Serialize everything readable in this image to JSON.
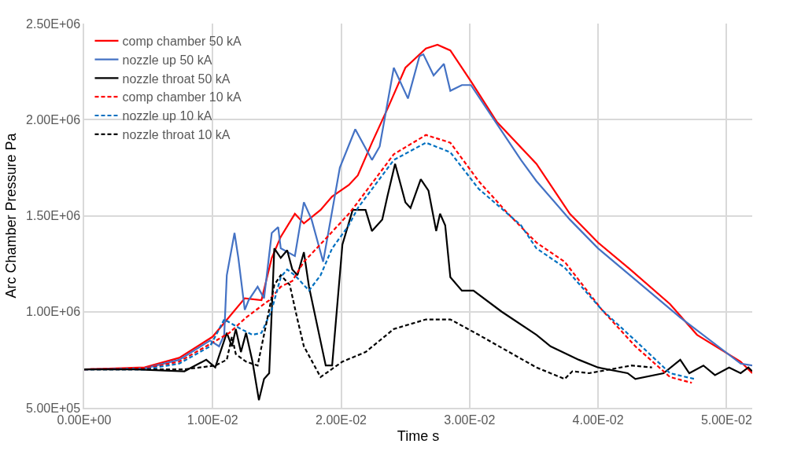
{
  "chart_data": {
    "type": "line",
    "xlabel": "Time s",
    "ylabel": "Arc Chamber Pressure Pa",
    "xlim": [
      0,
      0.052
    ],
    "ylim": [
      500000,
      2500000
    ],
    "xticks": [
      {
        "value": 0,
        "label": "0.00E+00"
      },
      {
        "value": 0.01,
        "label": "1.00E-02"
      },
      {
        "value": 0.02,
        "label": "2.00E-02"
      },
      {
        "value": 0.03,
        "label": "3.00E-02"
      },
      {
        "value": 0.04,
        "label": "4.00E-02"
      },
      {
        "value": 0.05,
        "label": "5.00E-02"
      }
    ],
    "yticks": [
      {
        "value": 500000,
        "label": "5.00E+05"
      },
      {
        "value": 1000000,
        "label": "1.00E+06"
      },
      {
        "value": 1500000,
        "label": "1.50E+06"
      },
      {
        "value": 2000000,
        "label": "2.00E+06"
      },
      {
        "value": 2500000,
        "label": "2.50E+06"
      }
    ],
    "grid": true,
    "legend": "top left",
    "marker": "none",
    "series": [
      {
        "name": "comp chamber 50 kA",
        "color": "#ff0000",
        "line_style": "solid",
        "x": [
          0,
          0.0047,
          0.0074,
          0.01,
          0.0125,
          0.0138,
          0.0146,
          0.0153,
          0.0164,
          0.0171,
          0.0184,
          0.0193,
          0.0206,
          0.0213,
          0.0224,
          0.0237,
          0.025,
          0.0266,
          0.0275,
          0.0285,
          0.0301,
          0.0321,
          0.0352,
          0.0378,
          0.04,
          0.0425,
          0.0456,
          0.0477,
          0.0511,
          0.052
        ],
        "values": [
          700000,
          710000,
          760000,
          870000,
          1070000,
          1060000,
          1280000,
          1390000,
          1510000,
          1460000,
          1530000,
          1600000,
          1660000,
          1710000,
          1880000,
          2070000,
          2270000,
          2370000,
          2390000,
          2360000,
          2200000,
          1990000,
          1770000,
          1510000,
          1360000,
          1220000,
          1040000,
          880000,
          740000,
          680000
        ]
      },
      {
        "name": "nozzle up 50 kA",
        "color": "#4472c4",
        "line_style": "solid",
        "x": [
          0,
          0.0047,
          0.0074,
          0.0098,
          0.0105,
          0.0109,
          0.0111,
          0.0117,
          0.012,
          0.0125,
          0.0128,
          0.0135,
          0.014,
          0.0146,
          0.0151,
          0.0153,
          0.0164,
          0.0171,
          0.0177,
          0.0186,
          0.0199,
          0.0211,
          0.0224,
          0.023,
          0.0241,
          0.0252,
          0.0261,
          0.0264,
          0.0272,
          0.028,
          0.0285,
          0.0294,
          0.0301,
          0.0321,
          0.034,
          0.0352,
          0.0378,
          0.04,
          0.0464,
          0.0511,
          0.052
        ],
        "values": [
          700000,
          705000,
          750000,
          850000,
          820000,
          880000,
          1190000,
          1410000,
          1280000,
          1010000,
          1060000,
          1130000,
          1070000,
          1410000,
          1440000,
          1330000,
          1290000,
          1570000,
          1480000,
          1260000,
          1750000,
          1950000,
          1790000,
          1860000,
          2270000,
          2110000,
          2330000,
          2340000,
          2230000,
          2290000,
          2150000,
          2180000,
          2180000,
          1980000,
          1790000,
          1680000,
          1480000,
          1330000,
          970000,
          730000,
          720000
        ]
      },
      {
        "name": "nozzle throat 50 kA",
        "color": "#000000",
        "line_style": "solid",
        "x": [
          0,
          0.004,
          0.0078,
          0.0095,
          0.0102,
          0.0111,
          0.0115,
          0.0118,
          0.0122,
          0.0126,
          0.0131,
          0.0136,
          0.014,
          0.0144,
          0.0148,
          0.0153,
          0.0158,
          0.0162,
          0.0166,
          0.0171,
          0.0175,
          0.0188,
          0.0193,
          0.0201,
          0.0209,
          0.0219,
          0.0224,
          0.0232,
          0.0236,
          0.0242,
          0.025,
          0.0254,
          0.0262,
          0.0268,
          0.0274,
          0.0277,
          0.0281,
          0.0285,
          0.0294,
          0.0303,
          0.0325,
          0.0352,
          0.0363,
          0.0385,
          0.04,
          0.0423,
          0.0429,
          0.0451,
          0.0464,
          0.0471,
          0.0482,
          0.0491,
          0.0502,
          0.0511,
          0.0517,
          0.052
        ],
        "values": [
          700000,
          700000,
          690000,
          750000,
          710000,
          890000,
          820000,
          910000,
          790000,
          890000,
          740000,
          540000,
          650000,
          680000,
          1330000,
          1280000,
          1320000,
          1220000,
          1190000,
          1310000,
          1130000,
          720000,
          720000,
          1350000,
          1530000,
          1530000,
          1420000,
          1480000,
          1600000,
          1770000,
          1570000,
          1540000,
          1690000,
          1630000,
          1420000,
          1510000,
          1450000,
          1180000,
          1110000,
          1110000,
          1000000,
          880000,
          820000,
          750000,
          710000,
          680000,
          650000,
          680000,
          750000,
          680000,
          720000,
          670000,
          710000,
          680000,
          710000,
          690000
        ]
      },
      {
        "name": "comp chamber 10 kA",
        "color": "#ff0000",
        "line_style": "dashed",
        "x": [
          0,
          0.0047,
          0.0074,
          0.01,
          0.0113,
          0.0126,
          0.0144,
          0.0153,
          0.0162,
          0.0171,
          0.0188,
          0.0206,
          0.0213,
          0.0241,
          0.0266,
          0.0285,
          0.0307,
          0.033,
          0.0352,
          0.0374,
          0.0403,
          0.0429,
          0.0456,
          0.0473
        ],
        "values": [
          700000,
          705000,
          740000,
          840000,
          890000,
          970000,
          1060000,
          1130000,
          1160000,
          1260000,
          1380000,
          1510000,
          1570000,
          1820000,
          1920000,
          1880000,
          1680000,
          1510000,
          1360000,
          1260000,
          1010000,
          820000,
          660000,
          630000
        ]
      },
      {
        "name": "nozzle up 10 kA",
        "color": "#0070c0",
        "line_style": "dashed",
        "x": [
          0,
          0.0047,
          0.0074,
          0.0098,
          0.0109,
          0.0122,
          0.0131,
          0.0138,
          0.0146,
          0.0153,
          0.0158,
          0.0164,
          0.0175,
          0.0184,
          0.0193,
          0.0206,
          0.0213,
          0.0241,
          0.0266,
          0.0285,
          0.0307,
          0.034,
          0.0352,
          0.0374,
          0.0403,
          0.0429,
          0.0456,
          0.0475
        ],
        "values": [
          700000,
          700000,
          730000,
          820000,
          960000,
          910000,
          880000,
          890000,
          1010000,
          1180000,
          1220000,
          1190000,
          1110000,
          1190000,
          1330000,
          1450000,
          1540000,
          1790000,
          1880000,
          1830000,
          1640000,
          1450000,
          1330000,
          1230000,
          1010000,
          850000,
          680000,
          650000
        ]
      },
      {
        "name": "nozzle throat 10 kA",
        "color": "#000000",
        "line_style": "dashed",
        "x": [
          0,
          0.004,
          0.0078,
          0.0102,
          0.0111,
          0.0115,
          0.0118,
          0.0126,
          0.0135,
          0.0148,
          0.0153,
          0.016,
          0.0166,
          0.0171,
          0.0184,
          0.0201,
          0.0219,
          0.0241,
          0.0266,
          0.0285,
          0.0307,
          0.0352,
          0.0374,
          0.038,
          0.0393,
          0.0426,
          0.0442
        ],
        "values": [
          700000,
          700000,
          700000,
          720000,
          750000,
          870000,
          780000,
          740000,
          720000,
          1140000,
          1190000,
          1140000,
          960000,
          820000,
          660000,
          740000,
          790000,
          910000,
          960000,
          960000,
          880000,
          710000,
          650000,
          690000,
          680000,
          720000,
          710000
        ]
      }
    ]
  }
}
